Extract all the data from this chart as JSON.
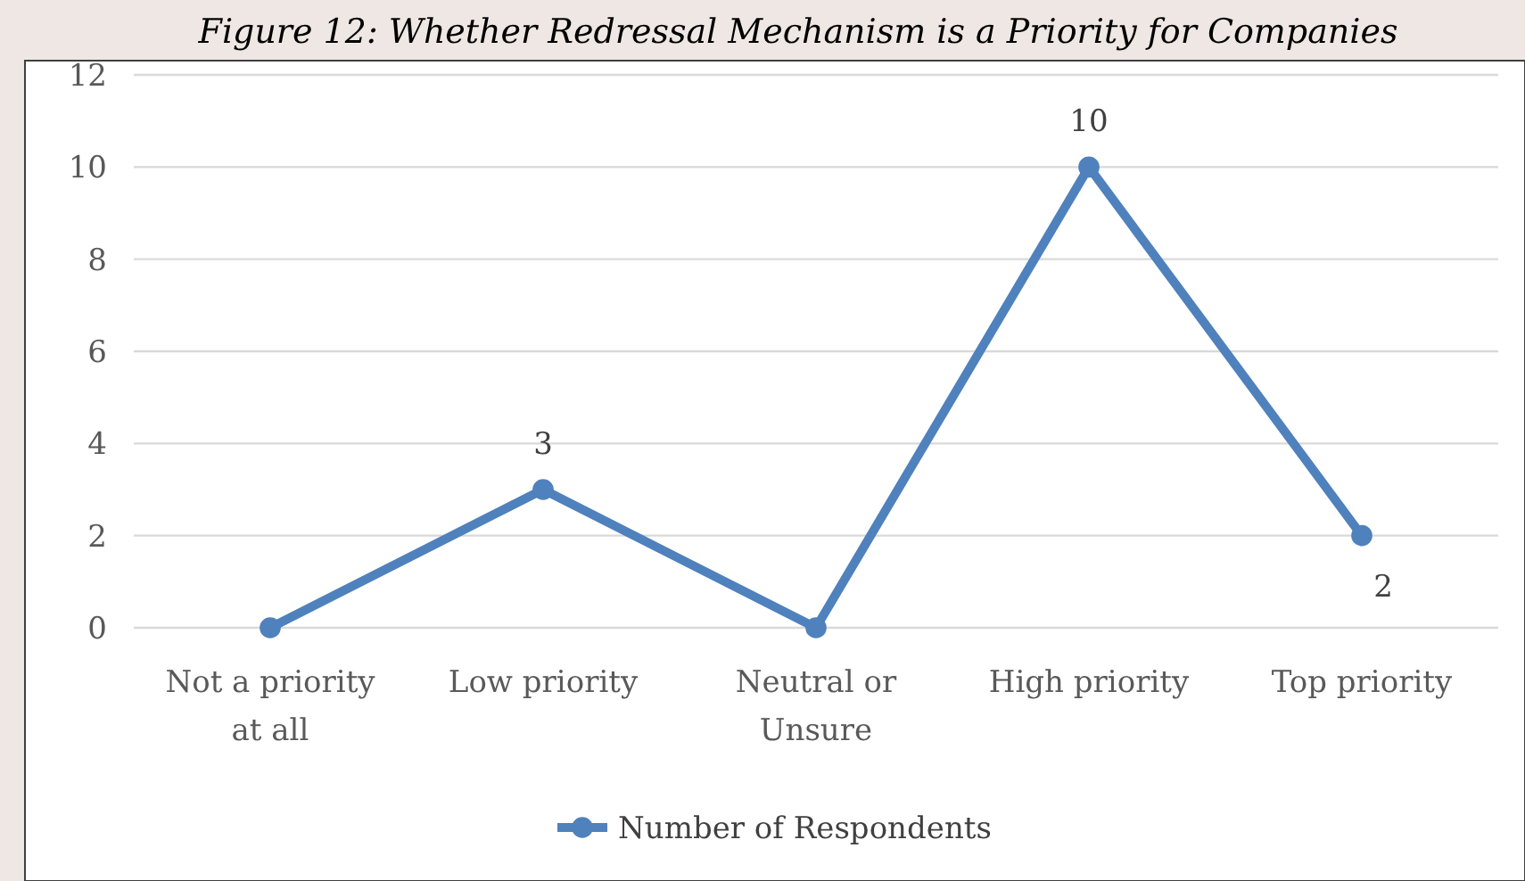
{
  "chart_data": {
    "type": "line",
    "title": "Figure 12: Whether Redressal Mechanism is a Priority for Companies",
    "categories": [
      "Not a priority at all",
      "Low priority",
      "Neutral or Unsure",
      "High priority",
      "Top priority"
    ],
    "series": [
      {
        "name": "Number of Respondents",
        "color": "#4f81bd",
        "values": [
          0,
          3,
          0,
          10,
          2
        ],
        "value_labels": [
          null,
          "3",
          null,
          "10",
          "2"
        ]
      }
    ],
    "ylim": [
      0,
      12
    ],
    "yticks": [
      0,
      2,
      4,
      6,
      8,
      10,
      12
    ],
    "grid": "y",
    "legend": "bottom",
    "marker": "circle",
    "line_style": "solid"
  }
}
